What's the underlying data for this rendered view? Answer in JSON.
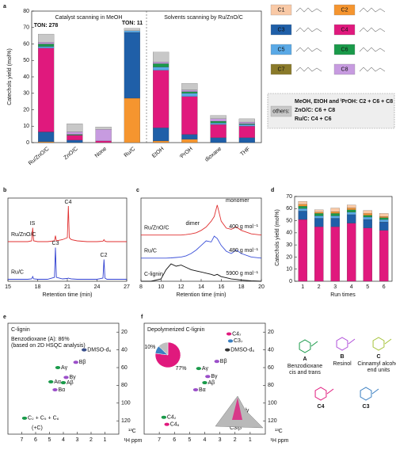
{
  "chart_data": [
    {
      "panel": "a",
      "type": "bar",
      "stacked": true,
      "ylabel": "Catechols yield (mol%)",
      "ylim": [
        0,
        80
      ],
      "yticks": [
        0,
        10,
        20,
        30,
        40,
        50,
        60,
        70,
        80
      ],
      "categories": [
        "Ru/ZnO/C",
        "ZnO/C",
        "None",
        "Ru/C",
        "EtOH",
        "ⁱPrOH",
        "dioxane",
        "THF"
      ],
      "series": [
        {
          "name": "C1",
          "color": "#f9c9a6",
          "values": [
            0,
            0,
            0,
            0,
            0,
            0,
            0,
            0
          ]
        },
        {
          "name": "C2",
          "color": "#f5952f",
          "values": [
            0.5,
            0,
            0,
            27,
            1,
            2,
            0,
            0
          ]
        },
        {
          "name": "C3",
          "color": "#1f5fa8",
          "values": [
            6,
            1.5,
            0,
            40,
            8,
            3,
            3,
            3
          ]
        },
        {
          "name": "C4",
          "color": "#e0197d",
          "values": [
            51,
            3,
            1,
            0,
            35,
            23,
            8,
            7
          ]
        },
        {
          "name": "C5",
          "color": "#5aa9e6",
          "values": [
            1,
            0,
            0,
            1,
            2,
            2,
            1,
            1
          ]
        },
        {
          "name": "C6",
          "color": "#1a9a4a",
          "values": [
            1.5,
            0.5,
            0,
            0,
            2,
            1,
            1,
            0.5
          ]
        },
        {
          "name": "C7",
          "color": "#8a7a2a",
          "values": [
            0,
            0,
            0,
            0,
            0,
            0,
            0,
            0
          ]
        },
        {
          "name": "C8",
          "color": "#c79be0",
          "values": [
            1,
            1.5,
            7,
            0,
            1,
            1,
            1.5,
            1
          ]
        },
        {
          "name": "others:",
          "color": "#c8c8c8",
          "values": [
            5,
            5,
            1.5,
            1.5,
            6,
            4,
            2,
            2
          ]
        }
      ],
      "legend_note": [
        "MeOH, EtOH and ⁱPrOH: C2 + C6 + C8",
        "ZnO/C: C6 + C8",
        "Ru/C: C4 + C6"
      ],
      "annotations": [
        "Catalyst scanning in MeOH",
        "Solvents scanning by Ru/ZnO/C",
        "TON: 278",
        "TON: 11"
      ]
    },
    {
      "panel": "b",
      "type": "line",
      "xlabel": "Retention time (min)",
      "xlim": [
        15,
        27
      ],
      "xticks": [
        15,
        18,
        21,
        24,
        27
      ],
      "ylim": [
        0,
        2.1
      ],
      "x": [
        15,
        16,
        17,
        17.4,
        17.5,
        17.6,
        18,
        19,
        19.7,
        19.8,
        19.9,
        20.5,
        21,
        21.1,
        21.2,
        21.4,
        22,
        23,
        24,
        24.6,
        24.7,
        24.8,
        25,
        26,
        27
      ],
      "series": [
        {
          "name": "Ru/ZnO/C",
          "color": "#e03030",
          "values": [
            1,
            1,
            1,
            1.02,
            1.35,
            1.02,
            1,
            1,
            1.02,
            1.15,
            1.02,
            1.05,
            1.1,
            1.9,
            1.1,
            1.05,
            1.02,
            1,
            1,
            1.01,
            1.05,
            1.01,
            1,
            1,
            1
          ]
        },
        {
          "name": "Ru/C",
          "color": "#2f3fd0",
          "values": [
            0.05,
            0.05,
            0.05,
            0.06,
            0.12,
            0.06,
            0.05,
            0.05,
            0.1,
            0.85,
            0.1,
            0.06,
            0.07,
            0.08,
            0.07,
            0.06,
            0.05,
            0.05,
            0.05,
            0.08,
            0.55,
            0.08,
            0.05,
            0.05,
            0.05
          ]
        }
      ],
      "annotations": [
        "IS",
        "C4",
        "C3",
        "C2"
      ]
    },
    {
      "panel": "c",
      "type": "line",
      "xlabel": "Retention time (min)",
      "xlim": [
        8,
        20
      ],
      "xticks": [
        8,
        10,
        12,
        14,
        16,
        18,
        20
      ],
      "ylim": [
        0,
        3.6
      ],
      "x": [
        8,
        9,
        10,
        10.5,
        11,
        11.5,
        12,
        12.5,
        13,
        13.5,
        14,
        14.5,
        15,
        15.3,
        15.6,
        16,
        16.5,
        17,
        17.5,
        18,
        19,
        20
      ],
      "series": [
        {
          "name": "Ru/ZnO/C",
          "color": "#e03030",
          "values": [
            2,
            2,
            2,
            2,
            2,
            2,
            2,
            2.02,
            2.05,
            2.1,
            2.2,
            2.35,
            2.6,
            2.8,
            3.3,
            2.6,
            2.3,
            2.25,
            2.35,
            2.2,
            2.05,
            2
          ]
        },
        {
          "name": "Ru/C",
          "color": "#3a4fd8",
          "values": [
            1,
            1,
            1,
            1,
            1.01,
            1.03,
            1.05,
            1.1,
            1.2,
            1.35,
            1.55,
            1.75,
            1.7,
            1.95,
            1.85,
            1.55,
            1.3,
            1.2,
            1.35,
            1.2,
            1.05,
            1
          ]
        },
        {
          "name": "C-lignin",
          "color": "#111111",
          "values": [
            0,
            0,
            0.1,
            0.5,
            0.75,
            0.65,
            0.7,
            0.6,
            0.5,
            0.45,
            0.4,
            0.35,
            0.3,
            0.25,
            0.3,
            0.2,
            0.15,
            0.1,
            0.08,
            0.05,
            0.02,
            0
          ]
        }
      ],
      "annotations": [
        "monomer",
        "dimer",
        "400 g mol⁻¹",
        "480 g mol⁻¹",
        "5900 g mol⁻¹"
      ]
    },
    {
      "panel": "d",
      "type": "bar",
      "stacked": true,
      "xlabel": "Run times",
      "ylabel": "Catechols yield (mol%)",
      "ylim": [
        0,
        70
      ],
      "yticks": [
        0,
        10,
        20,
        30,
        40,
        50,
        60,
        70
      ],
      "categories": [
        "1",
        "2",
        "3",
        "4",
        "5",
        "6"
      ],
      "series": [
        {
          "color": "#e0197d",
          "values": [
            51,
            45,
            45,
            48,
            44,
            42
          ]
        },
        {
          "color": "#1f5fa8",
          "values": [
            7,
            7,
            7,
            7,
            7,
            7
          ]
        },
        {
          "color": "#5aa9e6",
          "values": [
            2,
            2,
            2,
            2,
            2,
            2
          ]
        },
        {
          "color": "#1a9a4a",
          "values": [
            2,
            2,
            2,
            2,
            1.5,
            1.5
          ]
        },
        {
          "color": "#f5952f",
          "values": [
            1.5,
            1,
            1.5,
            1.5,
            1.5,
            1
          ]
        },
        {
          "color": "#f9c9a6",
          "values": [
            2.5,
            2,
            3,
            2.5,
            2.5,
            2.5
          ]
        }
      ]
    },
    {
      "panel": "e",
      "type": "scatter",
      "title": "C-lignin",
      "xlabel": "¹H ppm",
      "ylabel": "¹³C",
      "yaxis_side": "right",
      "xlim": [
        8,
        0
      ],
      "xticks": [
        7,
        6,
        5,
        4,
        3,
        2,
        1
      ],
      "ylim": [
        135,
        10
      ],
      "yticks": [
        20,
        40,
        60,
        80,
        100,
        120
      ],
      "peaks": {
        "labels": [
          "Aγ",
          "Aβ",
          "Aα",
          "Bγ",
          "Bβ",
          "Bα",
          "DMSO-d₆",
          "C₂ + C₅ + C₆"
        ],
        "x": [
          4.4,
          4.0,
          4.9,
          3.8,
          3.1,
          4.6,
          2.5,
          6.8
        ],
        "y": [
          60,
          77,
          76,
          71,
          54,
          85,
          40,
          117
        ],
        "colors": [
          "#1a9a4a",
          "#1a9a4a",
          "#1a9a4a",
          "#9b4fc9",
          "#9b4fc9",
          "#9b4fc9",
          "#3a4f8a",
          "#1a9a4a"
        ]
      },
      "annotations": [
        "Benzodioxane (A): 86%",
        "(based on 2D HSQC analysis)",
        "(+C)"
      ]
    },
    {
      "panel": "f",
      "type": "scatter",
      "title": "Depolymerized C-lignin",
      "xlabel": "¹H ppm",
      "ylabel": "¹³C",
      "yaxis_side": "right",
      "xlim": [
        8,
        0
      ],
      "xticks": [
        7,
        6,
        5,
        4,
        3,
        2,
        1
      ],
      "ylim": [
        135,
        10
      ],
      "yticks": [
        20,
        40,
        60,
        80,
        100,
        120
      ],
      "peaks": {
        "labels": [
          "C4₇",
          "C3₇",
          "DMSO-d₆",
          "Bβ",
          "Bγ",
          "Bα",
          "Aγ",
          "Aβ",
          "C4₂",
          "C4₆"
        ],
        "x": [
          2.4,
          2.3,
          2.5,
          3.2,
          3.8,
          4.6,
          4.4,
          4.0,
          6.7,
          6.5
        ],
        "y": [
          22,
          30,
          40,
          53,
          70,
          85,
          61,
          77,
          116,
          124
        ],
        "colors": [
          "#e0197d",
          "#3a7fc1",
          "#333333",
          "#9b4fc9",
          "#9b4fc9",
          "#9b4fc9",
          "#1a9a4a",
          "#1a9a4a",
          "#1a9a4a",
          "#e0197d"
        ]
      },
      "pie": {
        "values": [
          77,
          10,
          13
        ],
        "value_labels": [
          "77%",
          "10%",
          null
        ],
        "colors": [
          "#e0197d",
          "#3a7fc1",
          "#bfbfbf"
        ]
      },
      "annotations": [
        "C4/γ",
        "C3/β"
      ]
    }
  ],
  "structures": [
    {
      "label": "A",
      "name": "Benzodioxane",
      "note": "cis and trans",
      "color": "#1a9a4a"
    },
    {
      "label": "B",
      "name": "Resinol",
      "color": "#b04fd9"
    },
    {
      "label": "C",
      "name": "Cinnamyl alcohol",
      "note": "end units",
      "color": "#a6c33a"
    },
    {
      "label": "C4",
      "color": "#e0197d"
    },
    {
      "label": "C3",
      "color": "#3a7fc1"
    }
  ]
}
